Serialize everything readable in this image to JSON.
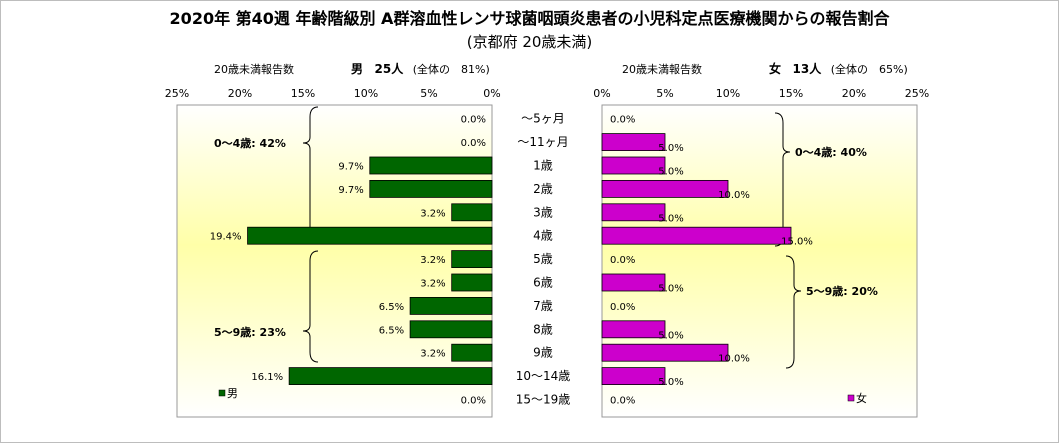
{
  "title": "2020年 第40週 年齢階級別 A群溶血性レンサ球菌咽頭炎患者の小児科定点医療機関からの報告割合",
  "subtitle": "(京都府 20歳未満)",
  "male_header": {
    "label": "20歳未満報告数",
    "sex": "男",
    "count": "25人",
    "share": "(全体の　81%)"
  },
  "female_header": {
    "label": "20歳未満報告数",
    "sex": "女",
    "count": "13人",
    "share": "(全体の　65%)"
  },
  "colors": {
    "male": "#006600",
    "female": "#cc00cc"
  },
  "chart_data": {
    "type": "bar",
    "orientation": "horizontal",
    "categories": [
      "～5ヶ月",
      "～11ヶ月",
      "1歳",
      "2歳",
      "3歳",
      "4歳",
      "5歳",
      "6歳",
      "7歳",
      "8歳",
      "9歳",
      "10～14歳",
      "15～19歳"
    ],
    "x_ticks": [
      "25%",
      "20%",
      "15%",
      "10%",
      "5%",
      "0%"
    ],
    "x_ticks_right": [
      "0%",
      "5%",
      "10%",
      "15%",
      "20%",
      "25%"
    ],
    "xlim": [
      0,
      25
    ],
    "series": [
      {
        "name": "男",
        "values": [
          0,
          0,
          9.7,
          9.7,
          3.2,
          19.4,
          3.2,
          3.2,
          6.5,
          6.5,
          3.2,
          16.1,
          0
        ],
        "labels": [
          "0.0%",
          "0.0%",
          "9.7%",
          "9.7%",
          "3.2%",
          "19.4%",
          "3.2%",
          "3.2%",
          "6.5%",
          "6.5%",
          "3.2%",
          "16.1%",
          "0.0%"
        ]
      },
      {
        "name": "女",
        "values": [
          0,
          5,
          5,
          10,
          5,
          15,
          0,
          5,
          0,
          5,
          10,
          5,
          0
        ],
        "labels": [
          "0.0%",
          "5.0%",
          "5.0%",
          "10.0%",
          "5.0%",
          "15.0%",
          "0.0%",
          "5.0%",
          "0.0%",
          "5.0%",
          "10.0%",
          "5.0%",
          "0.0%"
        ]
      }
    ],
    "annotations": {
      "male_0_4": "0～4歳: 42%",
      "male_5_9": "5～9歳: 23%",
      "female_0_4": "0～4歳: 40%",
      "female_5_9": "5～9歳: 20%"
    },
    "legend": {
      "male": "男",
      "female": "女"
    }
  }
}
